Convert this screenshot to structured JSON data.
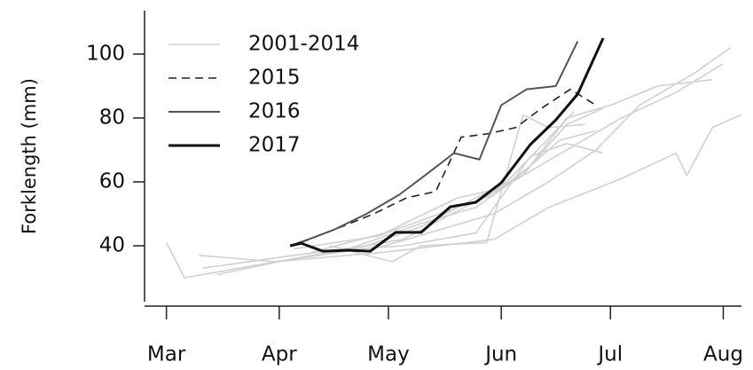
{
  "chart_data": {
    "type": "line",
    "ylabel": "Forklength (mm)",
    "xlim": [
      54,
      218
    ],
    "ylim": [
      22.5,
      113.6
    ],
    "xticks": [
      {
        "value": 60,
        "label": "Mar"
      },
      {
        "value": 91,
        "label": "Apr"
      },
      {
        "value": 121,
        "label": "May"
      },
      {
        "value": 152,
        "label": "Jun"
      },
      {
        "value": 182,
        "label": "Jul"
      },
      {
        "value": 213,
        "label": "Aug"
      }
    ],
    "yticks": [
      40,
      60,
      80,
      100
    ],
    "legend": "top-left",
    "series": [
      {
        "name": "2001-2014",
        "color": "#d0d0d0",
        "style": "solid",
        "width": 1.6,
        "lines": [
          {
            "x": [
              60,
              65,
              90,
              120,
              150,
              165,
              185,
              200,
              203,
              210,
              218
            ],
            "values": [
              41,
              30,
              35,
              38,
              42,
              52,
              61,
              69,
              62,
              77,
              81
            ]
          },
          {
            "x": [
              69,
              90,
              120,
              150,
              165,
              178,
              190,
              205,
              215
            ],
            "values": [
              37,
              35,
              40,
              50,
              60,
              70,
              84,
              94,
              102
            ]
          },
          {
            "x": [
              74,
              95,
              125,
              152,
              170,
              185,
              200,
              213
            ],
            "values": [
              31,
              36,
              42,
              58,
              70,
              80,
              88,
              97
            ]
          },
          {
            "x": [
              70,
              95,
              115,
              130,
              145,
              158,
              170,
              182,
              195,
              210
            ],
            "values": [
              33,
              37,
              40,
              46,
              55,
              62,
              80,
              84,
              90,
              92
            ]
          },
          {
            "x": [
              100,
              120,
              140,
              152,
              160,
              170,
              180
            ],
            "values": [
              38,
              44,
              55,
              58,
              65,
              78,
              83
            ]
          },
          {
            "x": [
              95,
              118,
              135,
              150,
              162,
              172
            ],
            "values": [
              39,
              43,
              50,
              56,
              70,
              82
            ]
          },
          {
            "x": [
              100,
              125,
              145,
              160,
              170,
              180
            ],
            "values": [
              38,
              40,
              44,
              68,
              72,
              69
            ]
          },
          {
            "x": [
              105,
              122,
              130,
              148,
              158,
              165,
              175
            ],
            "values": [
              40,
              35,
              40,
              41,
              81,
              77,
              78
            ]
          },
          {
            "x": [
              110,
              130,
              145,
              155,
              168,
              178
            ],
            "values": [
              39,
              47,
              52,
              60,
              73,
              76
            ]
          }
        ]
      },
      {
        "name": "2015",
        "color": "#222222",
        "style": "dashed",
        "width": 1.6,
        "x": [
          97,
          106,
          117,
          126,
          134,
          141,
          148,
          156,
          163,
          171,
          178
        ],
        "values": [
          41,
          45,
          50,
          55,
          57,
          74,
          75,
          77,
          83,
          89,
          84
        ]
      },
      {
        "name": "2016",
        "color": "#555555",
        "style": "solid",
        "width": 2,
        "x": [
          94,
          99,
          106,
          115,
          124,
          131,
          139,
          146,
          152,
          159,
          167,
          173
        ],
        "values": [
          40,
          42,
          45,
          50,
          56,
          62,
          69,
          67,
          84,
          89,
          90,
          104
        ]
      },
      {
        "name": "2017",
        "color": "#111111",
        "style": "solid",
        "width": 3,
        "x": [
          94,
          97,
          103,
          110,
          116,
          123,
          130,
          138,
          145,
          152,
          160,
          167,
          173,
          180
        ],
        "values": [
          40,
          40.8,
          38.3,
          38.6,
          38.3,
          44.2,
          44.2,
          52.2,
          53.6,
          59.7,
          71.7,
          79.4,
          87.5,
          105
        ]
      }
    ]
  }
}
